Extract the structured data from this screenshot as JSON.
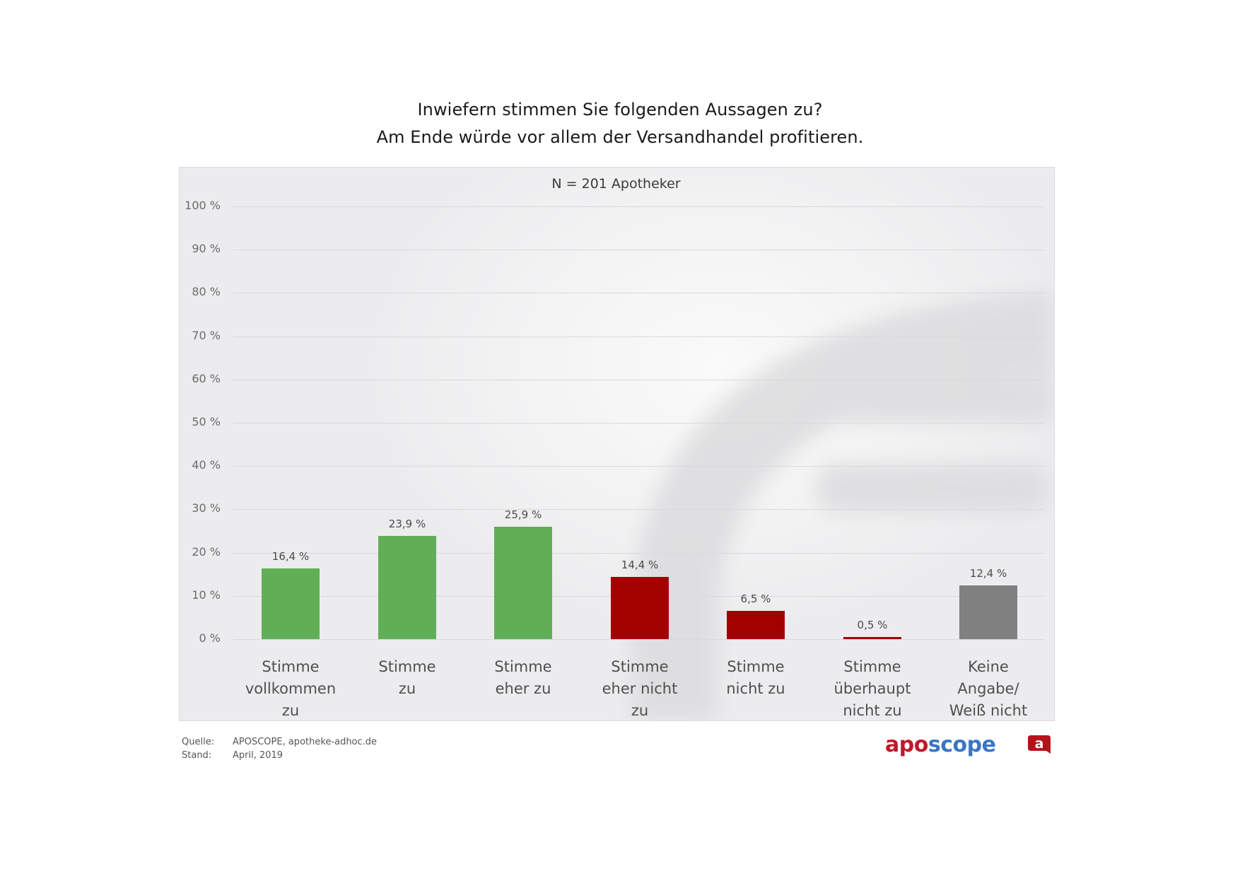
{
  "header": {
    "title_line1": "Inwiefern stimmen Sie folgenden Aussagen zu?",
    "title_line2": "Am Ende würde vor allem der Versandhandel profitieren."
  },
  "chart_data": {
    "type": "bar",
    "title": "Inwiefern stimmen Sie folgenden Aussagen zu? Am Ende würde vor allem der Versandhandel profitieren.",
    "subtitle": "N = 201 Apotheker",
    "xlabel": "",
    "ylabel": "",
    "ylim": [
      0,
      100
    ],
    "yticks": [
      "0 %",
      "10 %",
      "20 %",
      "30 %",
      "40 %",
      "50 %",
      "60 %",
      "70 %",
      "80 %",
      "90 %",
      "100 %"
    ],
    "grid": true,
    "categories": [
      "Stimme\nvollkommen\nzu",
      "Stimme\nzu",
      "Stimme\neher zu",
      "Stimme\neher nicht\nzu",
      "Stimme\nnicht zu",
      "Stimme\nüberhaupt\nnicht zu",
      "Keine Angabe/\nWeiß nicht"
    ],
    "values": [
      16.4,
      23.9,
      25.9,
      14.4,
      6.5,
      0.5,
      12.4
    ],
    "value_labels": [
      "16,4 %",
      "23,9 %",
      "25,9 %",
      "14,4 %",
      "6,5 %",
      "0,5 %",
      "12,4 %"
    ],
    "colors": [
      "#62ae57",
      "#62ae57",
      "#62ae57",
      "#a30000",
      "#a30000",
      "#a30000",
      "#808080"
    ]
  },
  "footer": {
    "source_label": "Quelle:",
    "source_value": "APOSCOPE, apotheke-adhoc.de",
    "date_label": "Stand:",
    "date_value": "April, 2019"
  },
  "logo": {
    "part1": "apo",
    "part2": "scope",
    "badge_letter": "a",
    "color_red": "#c0182a",
    "color_blue": "#3b75c2"
  }
}
